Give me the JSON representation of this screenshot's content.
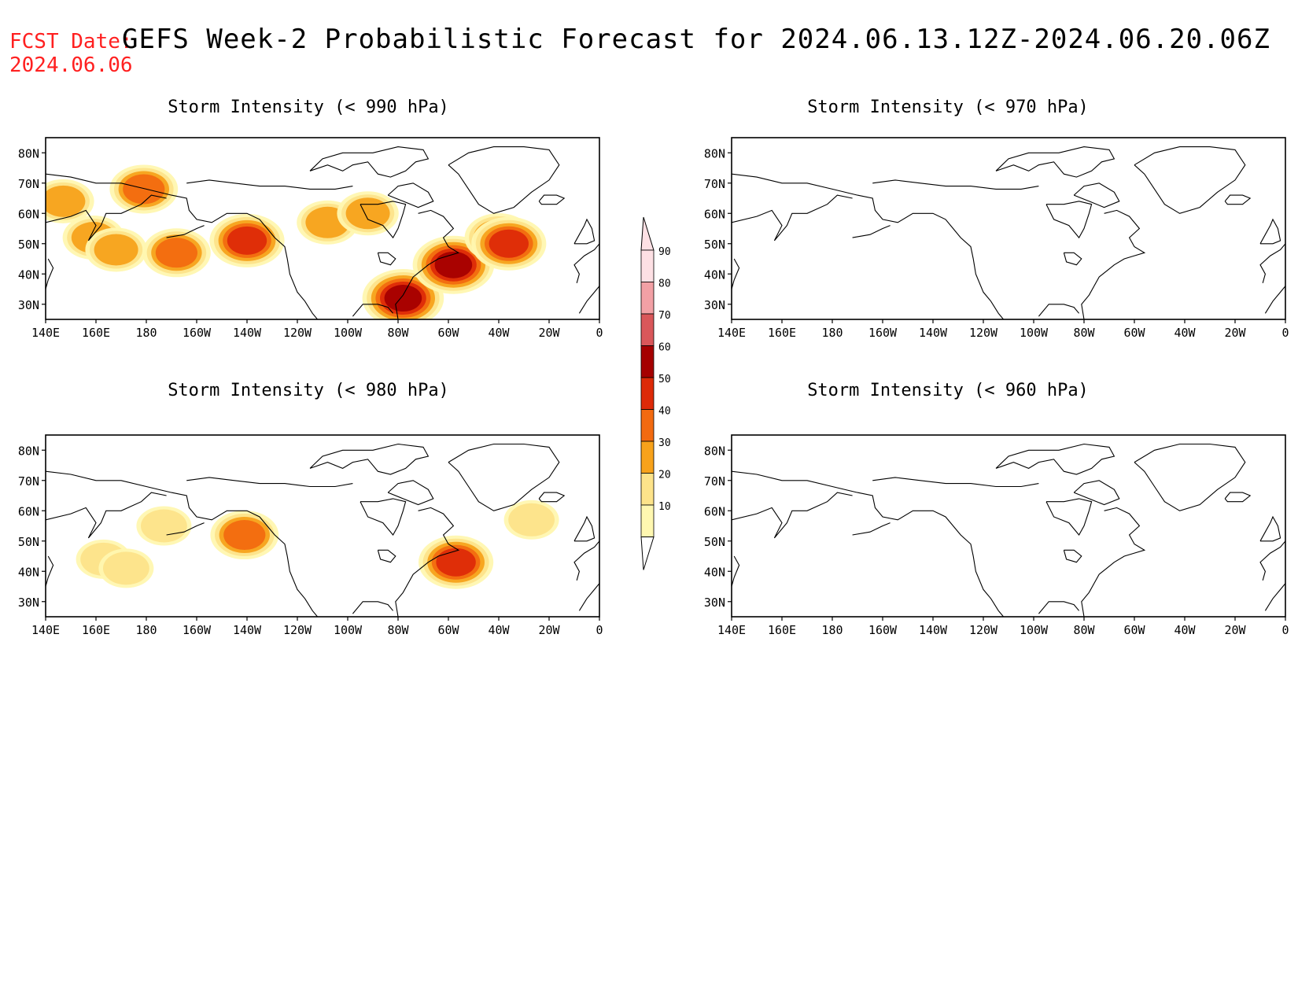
{
  "header": {
    "fcst_label": "FCST Date:",
    "fcst_date": "2024.06.06",
    "title": "GEFS Week-2 Probabilistic Forecast for 2024.06.13.12Z-2024.06.20.06Z"
  },
  "panels": [
    {
      "title": "Storm Intensity (< 990 hPa)"
    },
    {
      "title": "Storm Intensity (< 970 hPa)"
    },
    {
      "title": "Storm Intensity (< 980 hPa)"
    },
    {
      "title": "Storm Intensity (< 960 hPa)"
    }
  ],
  "axes": {
    "lat_labels": [
      "80N",
      "70N",
      "60N",
      "50N",
      "40N",
      "30N"
    ],
    "lon_labels": [
      "140E",
      "160E",
      "180",
      "160W",
      "140W",
      "120W",
      "100W",
      "80W",
      "60W",
      "40W",
      "20W",
      "0"
    ]
  },
  "colorbar": {
    "levels": [
      "10",
      "20",
      "30",
      "40",
      "50",
      "60",
      "70",
      "80",
      "90"
    ],
    "colors": [
      "#fff7b0",
      "#fde38a",
      "#f7a21b",
      "#f26a10",
      "#dd2a08",
      "#a50000",
      "#d9575a",
      "#f2a0a5",
      "#fde0e4"
    ]
  },
  "chart_data": {
    "type": "heatmap",
    "unit": "probability (%)",
    "lat_range": [
      25,
      85
    ],
    "lon_range": [
      140,
      360
    ],
    "panels": [
      {
        "threshold": "< 990 hPa",
        "regions": [
          {
            "lon": 147,
            "lat": 64,
            "level": 2
          },
          {
            "lon": 159,
            "lat": 52,
            "level": 2
          },
          {
            "lon": 168,
            "lat": 48,
            "level": 2
          },
          {
            "lon": 179,
            "lat": 68,
            "level": 3
          },
          {
            "lon": 192,
            "lat": 47,
            "level": 3
          },
          {
            "lon": 220,
            "lat": 51,
            "level": 4
          },
          {
            "lon": 252,
            "lat": 57,
            "level": 2
          },
          {
            "lon": 268,
            "lat": 60,
            "level": 2
          },
          {
            "lon": 282,
            "lat": 32,
            "level": 5
          },
          {
            "lon": 302,
            "lat": 43,
            "level": 5
          },
          {
            "lon": 320,
            "lat": 52,
            "level": 3
          },
          {
            "lon": 324,
            "lat": 50,
            "level": 4
          }
        ]
      },
      {
        "threshold": "< 970 hPa",
        "regions": []
      },
      {
        "threshold": "< 980 hPa",
        "regions": [
          {
            "lon": 163,
            "lat": 44,
            "level": 1
          },
          {
            "lon": 172,
            "lat": 41,
            "level": 1
          },
          {
            "lon": 187,
            "lat": 55,
            "level": 1
          },
          {
            "lon": 219,
            "lat": 52,
            "level": 3
          },
          {
            "lon": 303,
            "lat": 43,
            "level": 4
          },
          {
            "lon": 333,
            "lat": 57,
            "level": 1
          }
        ]
      },
      {
        "threshold": "< 960 hPa",
        "regions": []
      }
    ]
  }
}
